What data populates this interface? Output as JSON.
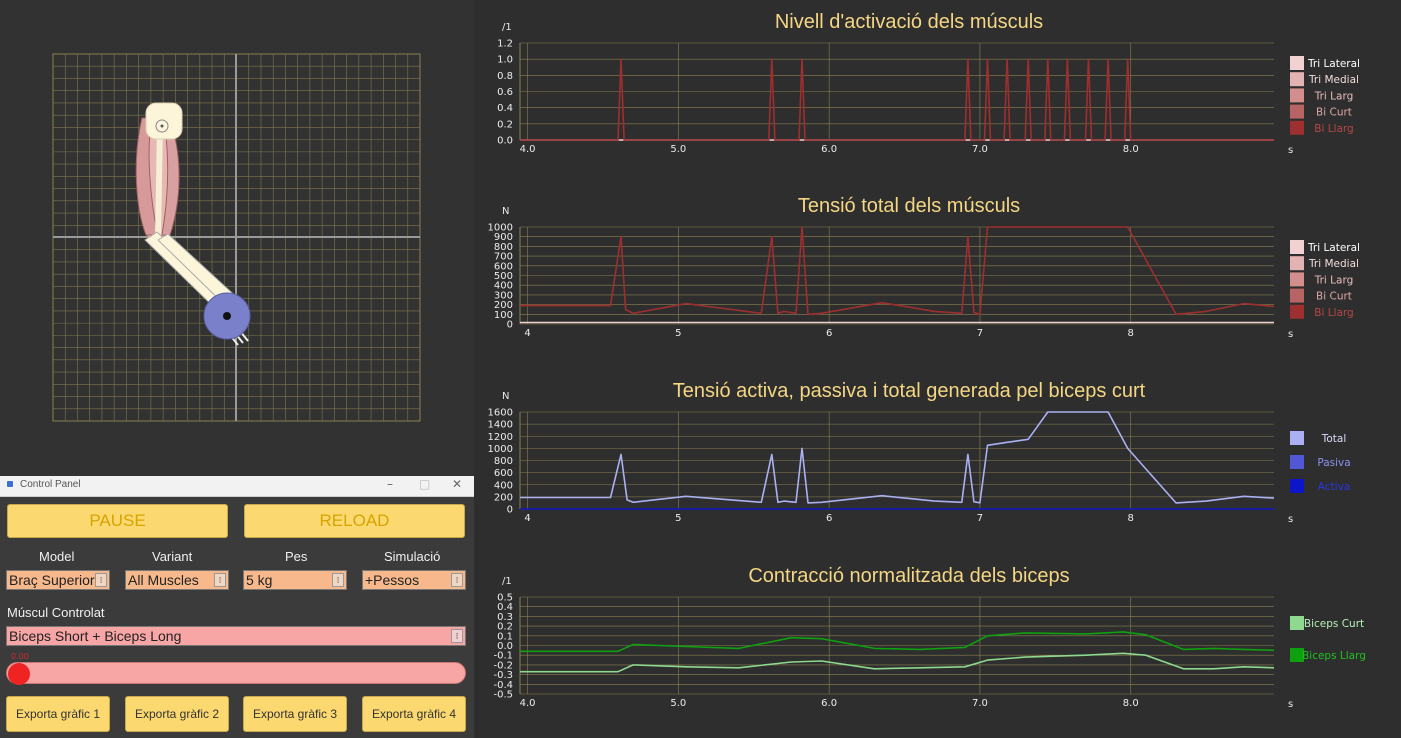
{
  "control_panel": {
    "window_title": "Control Panel",
    "pause_label": "PAUSE",
    "reload_label": "RELOAD",
    "selectors": [
      {
        "label": "Model",
        "value": "Braç Superior"
      },
      {
        "label": "Variant",
        "value": "All Muscles"
      },
      {
        "label": "Pes",
        "value": "5 kg"
      },
      {
        "label": "Simulació",
        "value": "+Pessos"
      }
    ],
    "muscle_label": "Múscul Controlat",
    "muscle_value": "Biceps Short + Biceps Long",
    "slider_value": "0.00",
    "slider_level": 0.0,
    "export_buttons": [
      "Exporta gràfic 1",
      "Exporta gràfic 2",
      "Exporta gràfic 3",
      "Exporta gràfic 4"
    ]
  },
  "colors": {
    "accent_yellow": "#fcd870",
    "title_text": "#f4d683",
    "grid": "#8a8150",
    "tri_lateral": "#f0d2d2",
    "tri_medial": "#e3b3b3",
    "tri_larg": "#d28d8d",
    "bi_curt": "#b86464",
    "bi_llarg": "#9e2f2f",
    "total": "#aab0f2",
    "pasiva": "#5257d6",
    "activa": "#0c16c8",
    "biceps_curt": "#8fd88f",
    "biceps_llarg": "#0ea00e"
  },
  "chart_data": [
    {
      "type": "line",
      "title": "Nivell d'activació dels músculs",
      "ylabel": "/1",
      "xlabel": "s",
      "xlim": [
        3.95,
        8.95
      ],
      "ylim": [
        0,
        1.2
      ],
      "xticks": [
        "4.0",
        "5.0",
        "6.0",
        "7.0",
        "8.0"
      ],
      "yticks": [
        "0.0",
        "0.2",
        "0.4",
        "0.6",
        "0.8",
        "1.0",
        "1.2"
      ],
      "legend": "right",
      "legend_entries": [
        "Tri Lateral",
        "Tri Medial",
        "Tri Larg",
        "Bi Curt",
        "Bi Llarg"
      ],
      "series": [
        {
          "name": "Tri Lateral",
          "x": [
            3.95,
            8.95
          ],
          "y": [
            0,
            0
          ]
        },
        {
          "name": "Bi Llarg",
          "spikes": [
            4.62,
            5.62,
            5.82,
            6.92,
            7.05,
            7.18,
            7.32,
            7.45,
            7.58,
            7.72,
            7.85,
            7.98
          ],
          "y_peak": 1.0,
          "y_base": 0
        }
      ]
    },
    {
      "type": "line",
      "title": "Tensió total dels músculs",
      "ylabel": "N",
      "xlabel": "s",
      "xlim": [
        3.95,
        8.95
      ],
      "ylim": [
        0,
        1000
      ],
      "xticks": [
        "4",
        "5",
        "6",
        "7",
        "8"
      ],
      "yticks": [
        "0",
        "100",
        "200",
        "300",
        "400",
        "500",
        "600",
        "700",
        "800",
        "900",
        "1000"
      ],
      "legend": "right",
      "legend_entries": [
        "Tri Lateral",
        "Tri Medial",
        "Tri Larg",
        "Bi Curt",
        "Bi Llarg"
      ],
      "series": [
        {
          "name": "Tri Lateral",
          "x": [
            3.95,
            8.95
          ],
          "y": [
            15,
            15
          ]
        },
        {
          "name": "Bi Llarg",
          "x": [
            3.95,
            4.55,
            4.62,
            4.65,
            4.7,
            5.05,
            5.3,
            5.55,
            5.62,
            5.66,
            5.7,
            5.78,
            5.82,
            5.86,
            5.95,
            6.35,
            6.7,
            6.88,
            6.92,
            6.96,
            7.0,
            7.05,
            7.18,
            7.32,
            7.45,
            7.58,
            7.72,
            7.85,
            7.98,
            8.3,
            8.5,
            8.75,
            8.95
          ],
          "y": [
            190,
            190,
            900,
            150,
            110,
            210,
            160,
            110,
            900,
            110,
            130,
            110,
            1000,
            100,
            110,
            220,
            130,
            110,
            900,
            120,
            100,
            1000,
            1000,
            1000,
            1000,
            1000,
            1000,
            1000,
            1000,
            100,
            130,
            210,
            180
          ]
        }
      ]
    },
    {
      "type": "line",
      "title": "Tensió activa, passiva i total generada pel biceps curt",
      "ylabel": "N",
      "xlabel": "s",
      "xlim": [
        3.95,
        8.95
      ],
      "ylim": [
        0,
        1600
      ],
      "xticks": [
        "4",
        "5",
        "6",
        "7",
        "8"
      ],
      "yticks": [
        "0",
        "200",
        "400",
        "600",
        "800",
        "1000",
        "1200",
        "1400",
        "1600"
      ],
      "legend": "right",
      "legend_entries": [
        "Total",
        "Pasiva",
        "Activa"
      ],
      "series": [
        {
          "name": "Total",
          "x": [
            3.95,
            4.55,
            4.62,
            4.66,
            4.7,
            5.05,
            5.3,
            5.55,
            5.62,
            5.66,
            5.7,
            5.78,
            5.82,
            5.86,
            5.95,
            6.35,
            6.7,
            6.88,
            6.92,
            6.96,
            7.0,
            7.05,
            7.18,
            7.32,
            7.45,
            7.58,
            7.72,
            7.85,
            7.98,
            8.3,
            8.5,
            8.75,
            8.95
          ],
          "y": [
            190,
            190,
            900,
            150,
            110,
            210,
            160,
            110,
            900,
            110,
            130,
            110,
            1000,
            100,
            110,
            220,
            130,
            110,
            900,
            120,
            100,
            1050,
            1100,
            1150,
            1600,
            1600,
            1600,
            1600,
            1000,
            100,
            130,
            210,
            180
          ]
        },
        {
          "name": "Activa",
          "x": [
            3.95,
            8.95
          ],
          "y": [
            0,
            0
          ]
        }
      ]
    },
    {
      "type": "line",
      "title": "Contracció normalitzada dels biceps",
      "ylabel": "/1",
      "xlabel": "s",
      "xlim": [
        3.95,
        8.95
      ],
      "ylim": [
        -0.5,
        0.5
      ],
      "xticks": [
        "4.0",
        "5.0",
        "6.0",
        "7.0",
        "8.0"
      ],
      "yticks": [
        "-0.5",
        "-0.4",
        "-0.3",
        "-0.2",
        "-0.1",
        "0.0",
        "0.1",
        "0.2",
        "0.3",
        "0.4",
        "0.5"
      ],
      "legend": "right",
      "legend_entries": [
        "Biceps Curt",
        "Biceps Llarg"
      ],
      "series": [
        {
          "name": "Biceps Curt",
          "x": [
            3.95,
            4.6,
            4.7,
            5.05,
            5.4,
            5.75,
            5.95,
            6.3,
            6.6,
            6.9,
            7.05,
            7.3,
            7.7,
            7.95,
            8.1,
            8.35,
            8.55,
            8.75,
            8.95
          ],
          "y": [
            -0.27,
            -0.27,
            -0.2,
            -0.22,
            -0.23,
            -0.17,
            -0.16,
            -0.24,
            -0.23,
            -0.22,
            -0.15,
            -0.12,
            -0.1,
            -0.08,
            -0.1,
            -0.24,
            -0.24,
            -0.22,
            -0.23
          ]
        },
        {
          "name": "Biceps Llarg",
          "x": [
            3.95,
            4.6,
            4.7,
            5.05,
            5.4,
            5.75,
            5.95,
            6.3,
            6.6,
            6.9,
            7.05,
            7.3,
            7.7,
            7.95,
            8.1,
            8.35,
            8.55,
            8.75,
            8.95
          ],
          "y": [
            -0.06,
            -0.06,
            0.01,
            -0.01,
            -0.03,
            0.08,
            0.07,
            -0.03,
            -0.04,
            -0.02,
            0.1,
            0.13,
            0.12,
            0.14,
            0.11,
            -0.04,
            -0.03,
            -0.04,
            -0.05
          ]
        }
      ]
    }
  ]
}
